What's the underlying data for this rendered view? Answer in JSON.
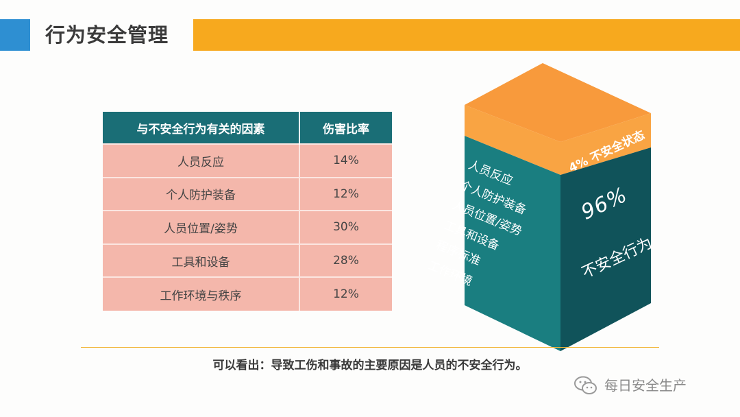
{
  "header": {
    "title": "行为安全管理"
  },
  "table": {
    "headers": [
      "与不安全行为有关的因素",
      "伤害比率"
    ],
    "rows": [
      [
        "人员反应",
        "14%"
      ],
      [
        "个人防护装备",
        "12%"
      ],
      [
        "人员位置/姿势",
        "30%"
      ],
      [
        "工具和设备",
        "28%"
      ],
      [
        "工作环境与秩序",
        "12%"
      ]
    ]
  },
  "cube": {
    "top_label": "4% 不安全状态",
    "left_face_items": [
      "人员反应",
      "个人防护装备",
      "人员位置/姿势",
      "工具和设备",
      "程序标准",
      "工作环境"
    ],
    "right_percent": "96%",
    "right_label": "不安全行为",
    "colors": {
      "orange_top": "#f89a3c",
      "orange_side": "#f9a443",
      "teal_left": "#1a7e80",
      "teal_right": "#10535a"
    }
  },
  "conclusion": "可以看出：导致工伤和事故的主要原因是人员的不安全行为。",
  "watermark": {
    "text": "每日安全生产",
    "icon": "wechat-icon"
  },
  "colors": {
    "accent_orange": "#f7a91e",
    "accent_blue": "#2e8fd2",
    "table_header": "#1a6e76",
    "table_cell": "#f4b7ab"
  }
}
